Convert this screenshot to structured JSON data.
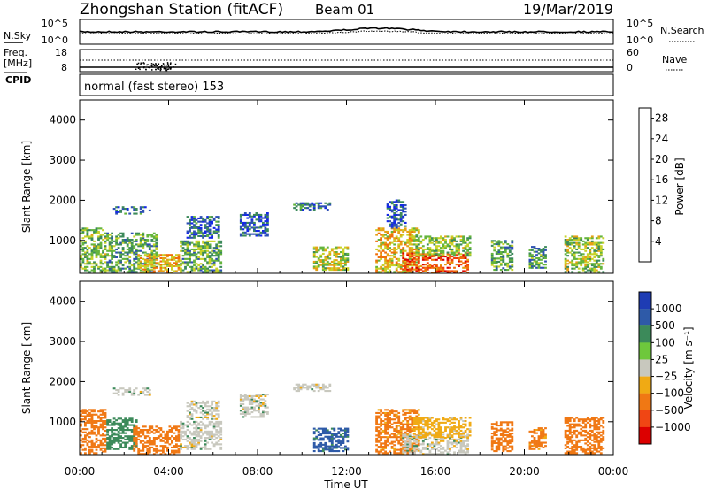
{
  "header": {
    "station": "Zhongshan Station (fitACF)",
    "beam": "Beam 01",
    "date": "19/Mar/2019"
  },
  "top_panel": {
    "left_label": "N.Sky",
    "left_ticks": [
      "10^5",
      "10^0"
    ],
    "right_ticks": [
      "10^5",
      "10^0"
    ],
    "right_label": "N.Search"
  },
  "freq_panel": {
    "left_label_1": "Freq.",
    "left_label_2": "[MHz]",
    "left_ticks": [
      "18",
      "8"
    ],
    "right_ticks": [
      "60",
      "0"
    ],
    "right_label": "Nave",
    "cpid_label": "CPID",
    "mode_text": "normal (fast stereo) 153"
  },
  "colors": {
    "power_scale": [
      "#1428e6",
      "#2e50b4",
      "#3c8a5a",
      "#64b43c",
      "#c8d228",
      "#e6a014",
      "#f06e0a",
      "#f03c0a",
      "#dc0000"
    ],
    "velocity_scale": [
      "#1e3cb4",
      "#2e5aa8",
      "#3c8a5a",
      "#6ec83c",
      "#c8c8be",
      "#f0aa14",
      "#f07814",
      "#f04614",
      "#dc0000"
    ],
    "ground_scatter": "#c8c8be"
  },
  "chart_data": [
    {
      "type": "heatmap",
      "panel": "power",
      "xlabel": "Time UT",
      "ylabel": "Slant Range [km]",
      "xticks": [
        "00:00",
        "04:00",
        "08:00",
        "12:00",
        "16:00",
        "20:00",
        "00:00"
      ],
      "x_range_hours": [
        0,
        24
      ],
      "yticks": [
        "1000",
        "2000",
        "3000",
        "4000"
      ],
      "y_range_km": [
        180,
        4500
      ],
      "colorbar_label": "Power [dB]",
      "colorbar_ticks": [
        "4",
        "8",
        "12",
        "16",
        "20",
        "24",
        "28"
      ],
      "color_range": [
        0,
        30
      ],
      "regions": [
        {
          "t": [
            0.0,
            1.2
          ],
          "r": [
            200,
            1300
          ],
          "v": 12
        },
        {
          "t": [
            1.2,
            3.5
          ],
          "r": [
            200,
            1200
          ],
          "v": 10
        },
        {
          "t": [
            2.6,
            4.4
          ],
          "r": [
            180,
            650
          ],
          "v": 18
        },
        {
          "t": [
            1.5,
            3.2
          ],
          "r": [
            1650,
            1850
          ],
          "v": 6
        },
        {
          "t": [
            4.5,
            6.3
          ],
          "r": [
            200,
            1000
          ],
          "v": 11
        },
        {
          "t": [
            4.8,
            6.2
          ],
          "r": [
            1050,
            1600
          ],
          "v": 6
        },
        {
          "t": [
            7.2,
            8.4
          ],
          "r": [
            1100,
            1700
          ],
          "v": 5
        },
        {
          "t": [
            9.6,
            11.2
          ],
          "r": [
            1750,
            1950
          ],
          "v": 6
        },
        {
          "t": [
            10.5,
            12.0
          ],
          "r": [
            250,
            850
          ],
          "v": 14
        },
        {
          "t": [
            13.3,
            15.2
          ],
          "r": [
            200,
            1300
          ],
          "v": 17
        },
        {
          "t": [
            13.8,
            14.6
          ],
          "r": [
            1300,
            2000
          ],
          "v": 5
        },
        {
          "t": [
            14.5,
            17.5
          ],
          "r": [
            180,
            700
          ],
          "v": 24
        },
        {
          "t": [
            15.0,
            17.6
          ],
          "r": [
            600,
            1100
          ],
          "v": 13
        },
        {
          "t": [
            18.5,
            19.5
          ],
          "r": [
            250,
            1000
          ],
          "v": 10
        },
        {
          "t": [
            20.2,
            21.0
          ],
          "r": [
            300,
            850
          ],
          "v": 9
        },
        {
          "t": [
            21.8,
            23.6
          ],
          "r": [
            200,
            1100
          ],
          "v": 13
        }
      ]
    },
    {
      "type": "heatmap",
      "panel": "velocity",
      "xlabel": "Time UT",
      "ylabel": "Slant Range [km]",
      "xticks": [
        "00:00",
        "04:00",
        "08:00",
        "12:00",
        "16:00",
        "20:00",
        "00:00"
      ],
      "x_range_hours": [
        0,
        24
      ],
      "yticks": [
        "1000",
        "2000",
        "3000",
        "4000"
      ],
      "y_range_km": [
        180,
        4500
      ],
      "colorbar_label": "Velocity [m s⁻¹]",
      "colorbar_ticks": [
        "1000",
        "500",
        "100",
        "25",
        "−25",
        "−100",
        "−500",
        "−1000"
      ],
      "regions": [
        {
          "t": [
            0.0,
            1.2
          ],
          "r": [
            200,
            1300
          ],
          "v": -200
        },
        {
          "t": [
            1.2,
            2.6
          ],
          "r": [
            300,
            1100
          ],
          "v": 60
        },
        {
          "t": [
            2.4,
            4.4
          ],
          "r": [
            180,
            900
          ],
          "v": -300
        },
        {
          "t": [
            1.5,
            3.2
          ],
          "r": [
            1650,
            1850
          ],
          "v": 0
        },
        {
          "t": [
            4.5,
            6.3
          ],
          "r": [
            300,
            1000
          ],
          "v": 0
        },
        {
          "t": [
            4.8,
            6.2
          ],
          "r": [
            1050,
            1500
          ],
          "v": 0
        },
        {
          "t": [
            7.2,
            8.4
          ],
          "r": [
            1100,
            1700
          ],
          "v": 0
        },
        {
          "t": [
            9.6,
            11.2
          ],
          "r": [
            1750,
            1950
          ],
          "v": 0
        },
        {
          "t": [
            10.5,
            12.0
          ],
          "r": [
            250,
            850
          ],
          "v": 150
        },
        {
          "t": [
            13.3,
            15.2
          ],
          "r": [
            200,
            1300
          ],
          "v": -150
        },
        {
          "t": [
            14.5,
            17.5
          ],
          "r": [
            180,
            700
          ],
          "v": 0
        },
        {
          "t": [
            15.0,
            17.6
          ],
          "r": [
            600,
            1100
          ],
          "v": -50
        },
        {
          "t": [
            18.5,
            19.5
          ],
          "r": [
            250,
            1000
          ],
          "v": -250
        },
        {
          "t": [
            20.2,
            21.0
          ],
          "r": [
            300,
            850
          ],
          "v": -150
        },
        {
          "t": [
            21.8,
            23.6
          ],
          "r": [
            200,
            1100
          ],
          "v": -200
        }
      ]
    }
  ]
}
